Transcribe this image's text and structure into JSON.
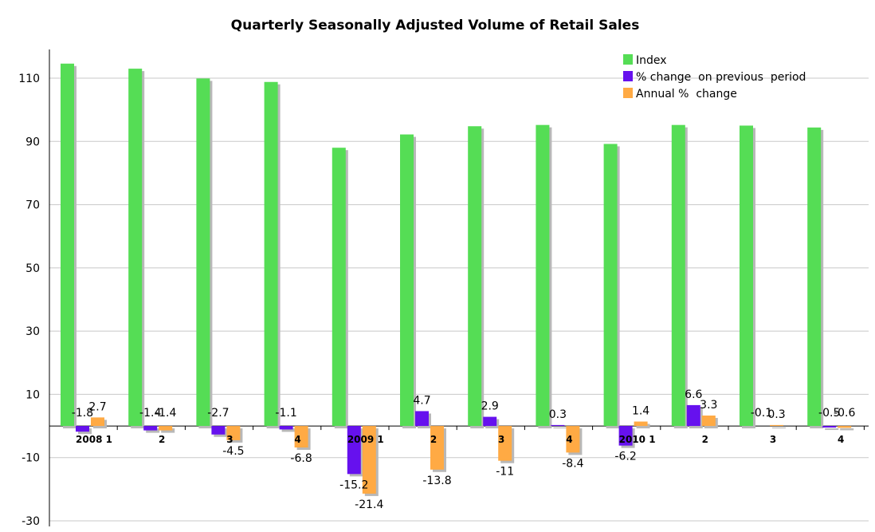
{
  "chart_data": {
    "type": "bar",
    "title": "Quarterly Seasonally Adjusted Volume of Retail Sales",
    "xlabel": "",
    "ylabel": "",
    "ylim": [
      -30,
      120
    ],
    "yticks": [
      110,
      90,
      70,
      50,
      30,
      10,
      -10,
      -30
    ],
    "categories": [
      "2008 1",
      "2",
      "3",
      "4",
      "2009 1",
      "2",
      "3",
      "4",
      "2010 1",
      "2",
      "3",
      "4"
    ],
    "series": [
      {
        "name": "Index",
        "color": "#55dd55",
        "values": [
          114.6,
          113.0,
          109.9,
          108.8,
          88.0,
          92.2,
          94.8,
          95.2,
          89.2,
          95.2,
          95.0,
          94.4
        ],
        "labels": [
          "",
          "",
          "",
          "",
          "",
          "",
          "",
          "",
          "",
          "",
          "",
          ""
        ]
      },
      {
        "name": "% change  on previous  period",
        "color": "#6611ee",
        "values": [
          -1.8,
          -1.4,
          -2.7,
          -1.1,
          -15.2,
          4.7,
          2.9,
          0.3,
          -6.2,
          6.6,
          -0.1,
          -0.5
        ],
        "labels": [
          "-1.8",
          "-1.4",
          "-2.7",
          "-1.1",
          "-15.2",
          "4.7",
          "2.9",
          "0.3",
          "-6.2",
          "6.6",
          "-0.1",
          "-0.5"
        ]
      },
      {
        "name": "Annual %  change",
        "color": "#ffaa44",
        "values": [
          2.7,
          -1.4,
          -4.5,
          -6.8,
          -21.4,
          -13.8,
          -11,
          -8.4,
          1.4,
          3.3,
          0.3,
          -0.6
        ],
        "labels": [
          "2.7",
          "-1.4",
          "-4.5",
          "-6.8",
          "-21.4",
          "-13.8",
          "-11",
          "-8.4",
          "1.4",
          "3.3",
          "0.3",
          "-0.6"
        ]
      }
    ],
    "legend": "top-right",
    "grid": true
  }
}
